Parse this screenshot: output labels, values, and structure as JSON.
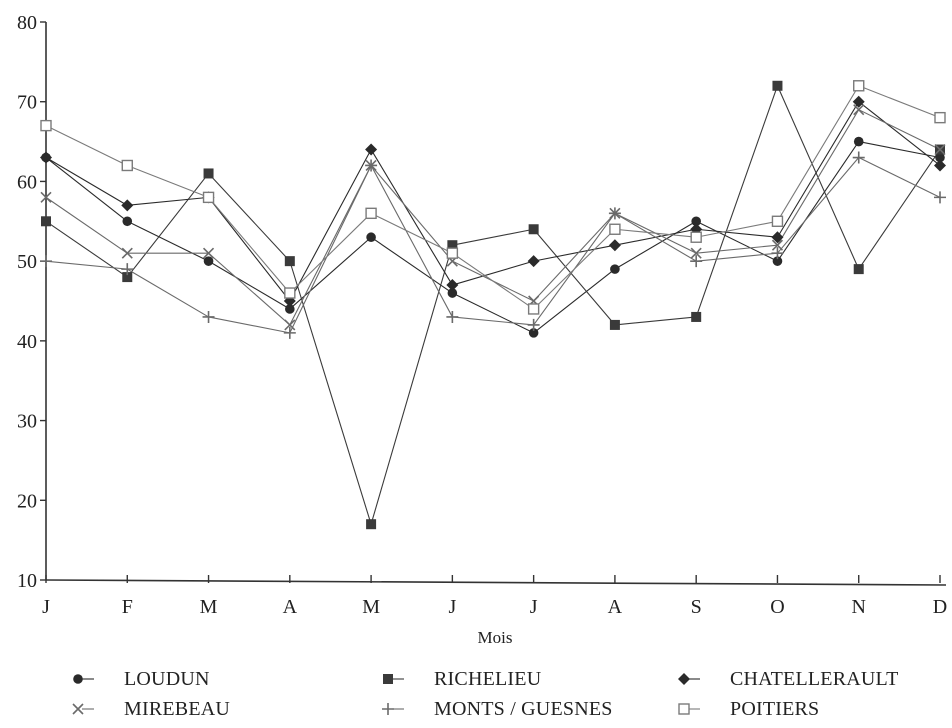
{
  "chart_data": {
    "type": "line",
    "title": "",
    "xlabel": "Mois",
    "ylabel": "",
    "categories": [
      "J",
      "F",
      "M",
      "A",
      "M",
      "J",
      "J",
      "A",
      "S",
      "O",
      "N",
      "D"
    ],
    "ylim": [
      10,
      80
    ],
    "yticks": [
      10,
      20,
      30,
      40,
      50,
      60,
      70,
      80
    ],
    "grid": false,
    "legend_position": "bottom",
    "series": [
      {
        "name": "LOUDUN",
        "marker": "circle",
        "color": "#2a2a2a",
        "values": [
          63,
          55,
          50,
          44,
          53,
          46,
          41,
          49,
          55,
          50,
          65,
          63
        ]
      },
      {
        "name": "RICHELIEU",
        "marker": "square",
        "color": "#3a3a3a",
        "values": [
          55,
          48,
          61,
          50,
          17,
          52,
          54,
          42,
          43,
          72,
          49,
          64
        ]
      },
      {
        "name": "CHATELLERAULT",
        "marker": "diamond",
        "color": "#2a2a2a",
        "values": [
          63,
          57,
          58,
          45,
          64,
          47,
          50,
          52,
          54,
          53,
          70,
          62
        ]
      },
      {
        "name": "MIREBEAU",
        "marker": "x",
        "color": "#6a6a6a",
        "values": [
          58,
          51,
          51,
          42,
          62,
          50,
          45,
          56,
          51,
          52,
          69,
          64
        ]
      },
      {
        "name": "MONTS / GUESNES",
        "marker": "plus",
        "color": "#6a6a6a",
        "values": [
          50,
          49,
          43,
          41,
          62,
          43,
          42,
          56,
          50,
          51,
          63,
          58
        ]
      },
      {
        "name": "POITIERS",
        "marker": "open-square",
        "color": "#7a7a7a",
        "values": [
          67,
          62,
          58,
          46,
          56,
          51,
          44,
          54,
          53,
          55,
          72,
          68
        ]
      }
    ]
  }
}
